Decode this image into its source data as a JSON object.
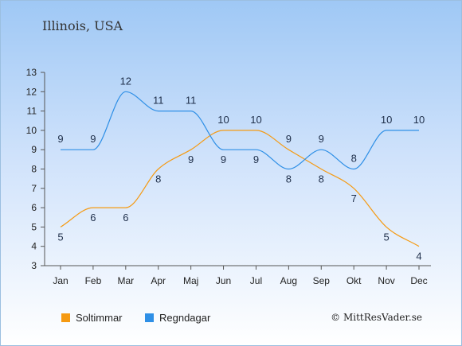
{
  "chart_data": {
    "type": "line",
    "title": "Illinois, USA",
    "categories": [
      "Jan",
      "Feb",
      "Mar",
      "Apr",
      "Maj",
      "Jun",
      "Jul",
      "Aug",
      "Sep",
      "Okt",
      "Nov",
      "Dec"
    ],
    "ylim": [
      3,
      13
    ],
    "yticks": [
      "3",
      "4",
      "5",
      "6",
      "7",
      "8",
      "9",
      "10",
      "11",
      "12",
      "13"
    ],
    "series": [
      {
        "name": "Soltimmar",
        "color": "#f59a12",
        "values": [
          5,
          6,
          6,
          8,
          9,
          10,
          10,
          9,
          8,
          7,
          5,
          4
        ]
      },
      {
        "name": "Regndagar",
        "color": "#2e8fe6",
        "values": [
          9,
          9,
          12,
          11,
          11,
          9,
          9,
          8,
          9,
          8,
          10,
          10
        ]
      }
    ],
    "legend_position": "bottom-left",
    "grid": false
  },
  "credit": "© MittResVader.se"
}
